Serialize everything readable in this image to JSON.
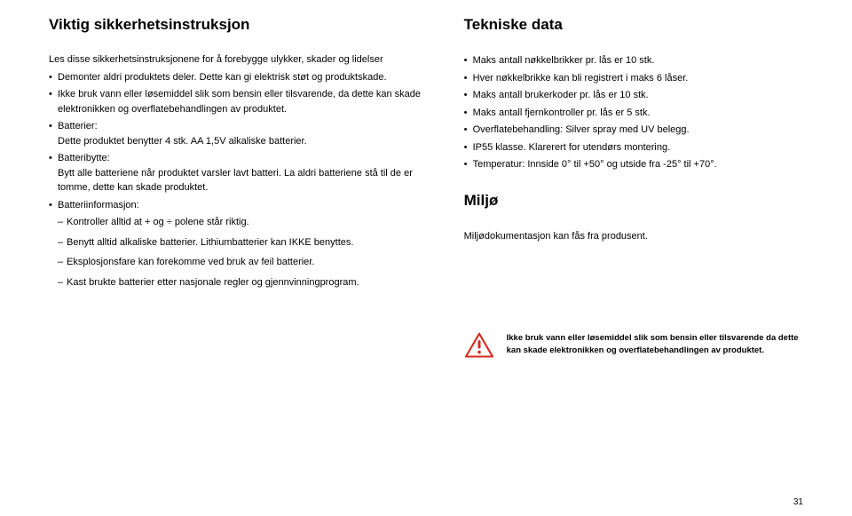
{
  "left": {
    "title": "Viktig sikkerhetsinstruksjon",
    "intro": "Les disse sikkerhetsinstruksjonene for å forebygge ulykker, skader og lidelser",
    "items": [
      {
        "text": "Demonter aldri produktets deler. Dette kan gi elektrisk støt og produktskade."
      },
      {
        "text": "Ikke bruk vann eller løsemiddel slik som bensin eller tilsvarende, da dette kan skade elektronikken og overflatebehandlingen av produktet."
      },
      {
        "text": "Batterier:\nDette produktet benytter 4 stk. AA 1,5V alkaliske batterier."
      },
      {
        "text": "Batteribytte:\nBytt alle batteriene når produktet varsler lavt batteri. La aldri batteriene stå til de er tomme, dette kan skade produktet."
      },
      {
        "text": "Batteriinformasjon:",
        "sub": [
          "Kontroller alltid at + og ÷ polene står riktig.",
          "Benytt alltid alkaliske batterier. Lithiumbatterier kan IKKE benyttes.",
          "Eksplosjonsfare kan forekomme ved bruk av feil batterier.",
          "Kast brukte batterier etter nasjonale regler og gjennvinningprogram."
        ]
      }
    ]
  },
  "right": {
    "tech_title": "Tekniske data",
    "tech_items": [
      "Maks antall nøkkelbrikker pr. lås er 10 stk.",
      "Hver nøkkelbrikke kan bli registrert i maks 6 låser.",
      "Maks antall brukerkoder pr. lås er 10 stk.",
      "Maks antall fjernkontroller pr. lås er 5 stk.",
      "Overflatebehandling: Silver spray med UV belegg.",
      "IP55 klasse. Klarerert for utendørs montering.",
      "Temperatur: Innside 0° til +50° og utside fra -25° til +70°."
    ],
    "miljo_title": "Miljø",
    "miljo_text": "Miljødokumentasjon kan fås fra produsent.",
    "warning_text": "Ikke bruk vann eller løsemiddel slik som bensin eller tilsvarende da dette kan skade elektronikken og overflatebehandlingen av produktet."
  },
  "page_number": "31",
  "colors": {
    "warning_stroke": "#d52b1e",
    "warning_fill": "#ffffff",
    "text": "#000000",
    "bg": "#ffffff"
  }
}
